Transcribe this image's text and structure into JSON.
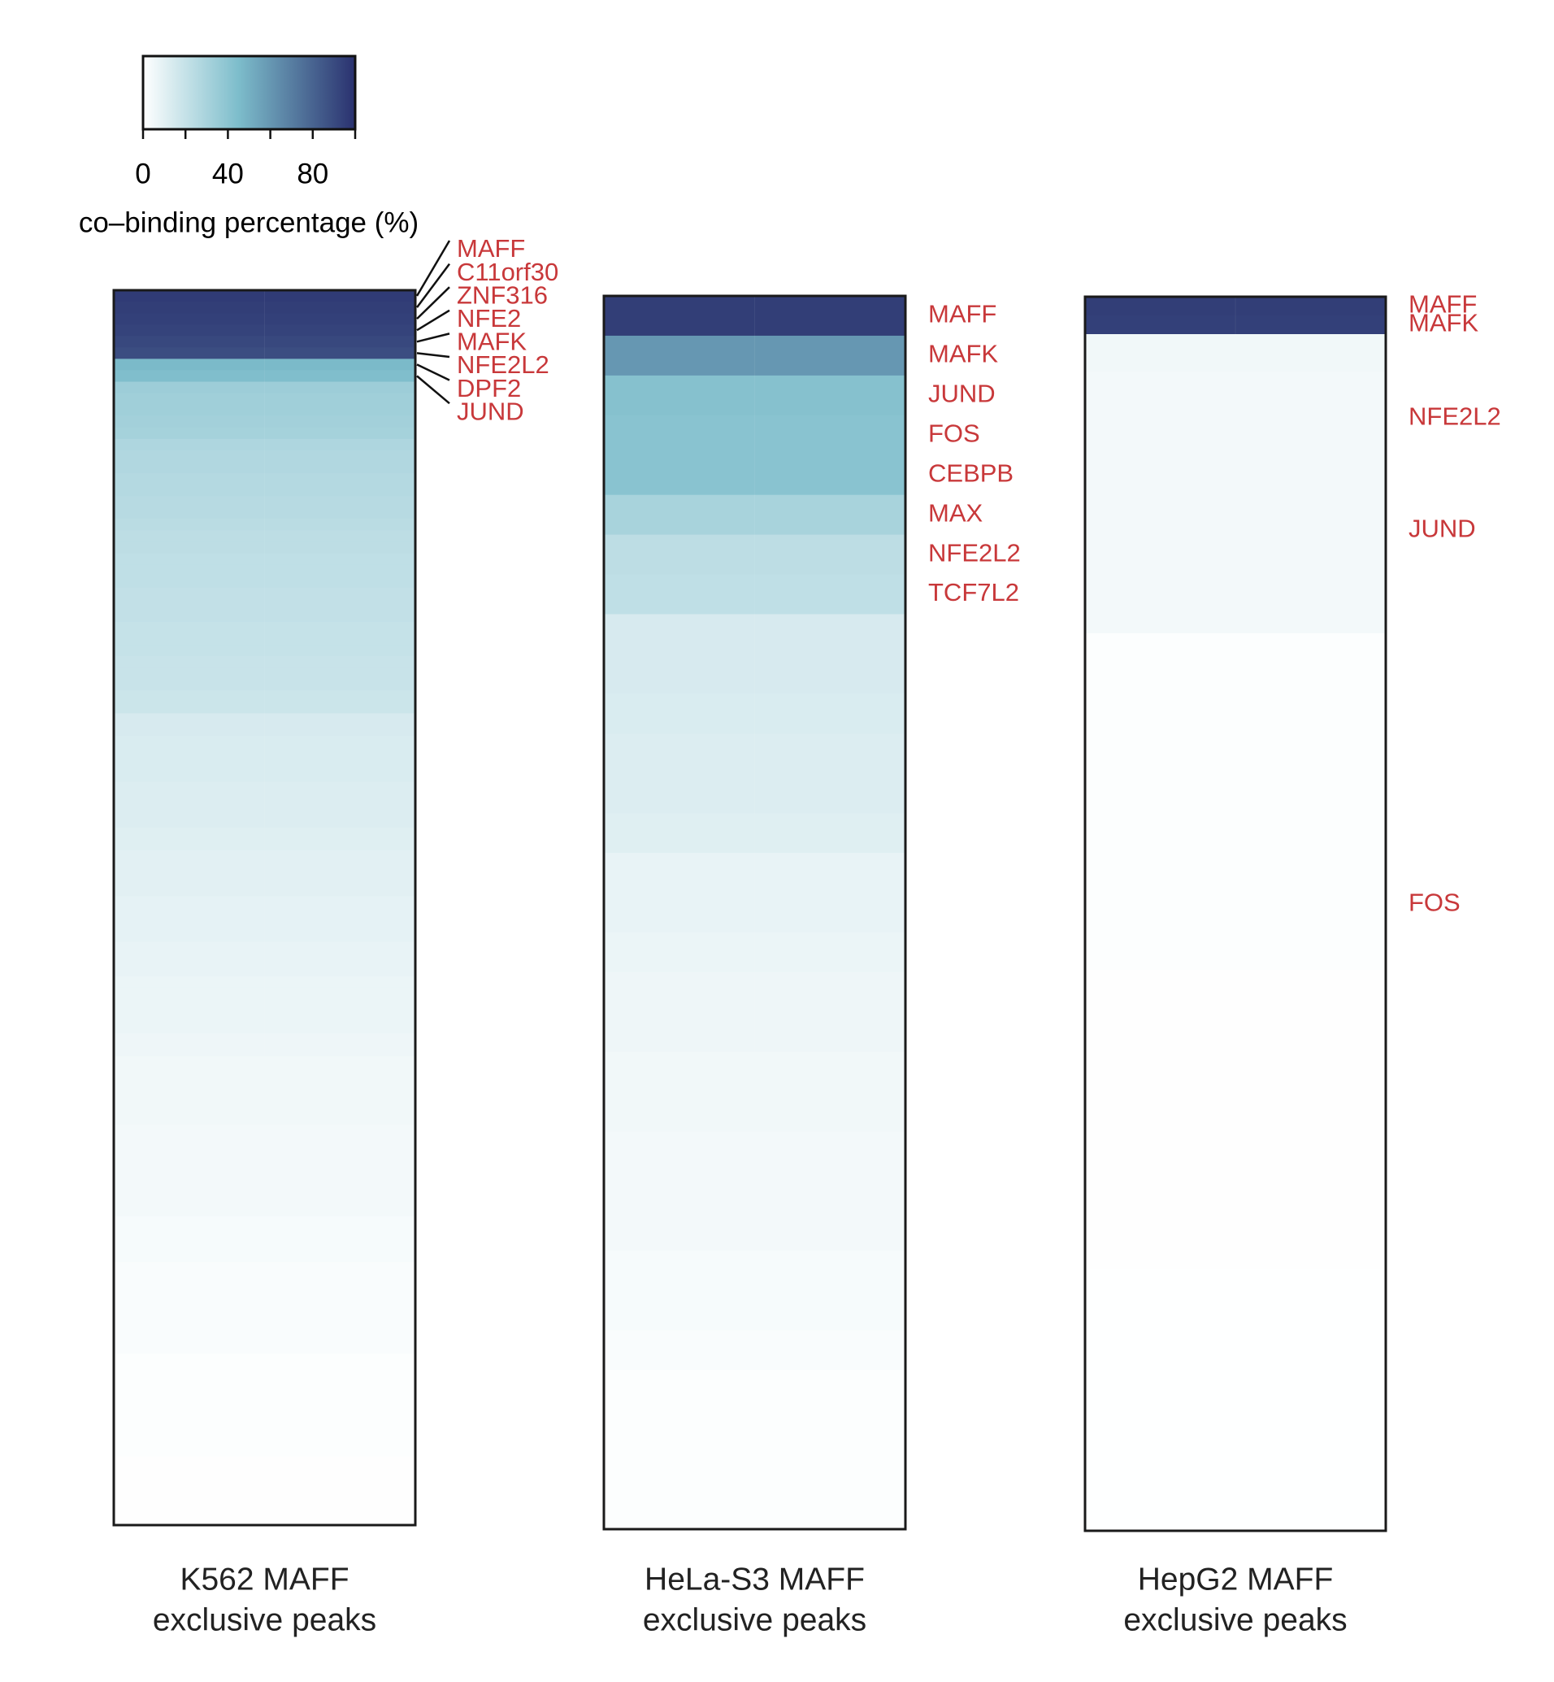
{
  "chart_data": {
    "type": "heatmap",
    "colorbar": {
      "label": "co–binding percentage (%)",
      "lim": [
        0,
        100
      ],
      "ticks": [
        0,
        40,
        80
      ],
      "minor_ticks": [
        20,
        60,
        100
      ]
    },
    "colorscale": [
      {
        "value": 0,
        "color": "#ffffff"
      },
      {
        "value": 45,
        "color": "#7dbdcb"
      },
      {
        "value": 100,
        "color": "#2a316f"
      }
    ],
    "label_color": "#c8383a",
    "panels": [
      {
        "title": [
          "K562 MAFF",
          "exclusive peaks"
        ],
        "leader_lines": true,
        "categories": [
          "MAFF",
          "C11orf30",
          "ZNF316",
          "NFE2",
          "MAFK",
          "NFE2L2",
          "DPF2",
          "JUND",
          null,
          null,
          null,
          null,
          null,
          null,
          null,
          null,
          null,
          null,
          null,
          null,
          null,
          null,
          null,
          null,
          null,
          null,
          null,
          null,
          null,
          null,
          null,
          null,
          null,
          null,
          null,
          null,
          null,
          null,
          null,
          null,
          null,
          null,
          null,
          null,
          null,
          null,
          null,
          null,
          null,
          null,
          null,
          null,
          null,
          null,
          null,
          null,
          null,
          null,
          null,
          null,
          null,
          null,
          null,
          null,
          null,
          null,
          null,
          null,
          null,
          null,
          null,
          null,
          null,
          null,
          null,
          null,
          null,
          null,
          null,
          null,
          null,
          null,
          null,
          null,
          null,
          null,
          null,
          null,
          null,
          null,
          null,
          null,
          null,
          null,
          null,
          null,
          null,
          null,
          null,
          null,
          null,
          null,
          null,
          null,
          null,
          null,
          null,
          null
        ],
        "values": [
          96,
          95,
          94,
          93,
          91,
          89,
          46,
          44,
          34,
          33,
          33,
          32,
          31,
          28,
          27,
          27,
          26,
          26,
          25,
          25,
          24,
          23,
          23,
          22,
          22,
          22,
          21,
          21,
          21,
          20,
          20,
          20,
          19,
          19,
          19,
          18,
          18,
          14,
          14,
          13,
          13,
          13,
          13,
          12,
          12,
          12,
          12,
          11,
          11,
          10,
          10,
          10,
          10,
          9,
          9,
          9,
          9,
          8,
          8,
          8,
          7,
          7,
          7,
          7,
          7,
          6,
          6,
          5,
          5,
          5,
          5,
          5,
          5,
          4,
          4,
          4,
          4,
          4,
          4,
          4,
          4,
          3,
          3,
          3,
          3,
          2,
          2,
          2,
          2,
          2,
          2,
          2,
          2,
          1,
          1,
          1,
          1,
          1,
          1,
          1,
          1,
          1,
          0.5,
          0.5,
          0.5,
          0.5,
          0.5,
          0.5
        ]
      },
      {
        "title": [
          "HeLa-S3 MAFF",
          "exclusive peaks"
        ],
        "leader_lines": false,
        "categories": [
          "MAFF",
          "MAFK",
          "JUND",
          "FOS",
          "CEBPB",
          "MAX",
          "NFE2L2",
          "TCF7L2",
          null,
          null,
          null,
          null,
          null,
          null,
          null,
          null,
          null,
          null,
          null,
          null,
          null,
          null,
          null,
          null,
          null,
          null,
          null,
          null,
          null,
          null,
          null
        ],
        "values": [
          95,
          60,
          42,
          41,
          41,
          30,
          23,
          22,
          14,
          14,
          13,
          12,
          12,
          11,
          8,
          8,
          7,
          6,
          6,
          5,
          5,
          4,
          4,
          4,
          3,
          3,
          2,
          1,
          1,
          1,
          1
        ]
      },
      {
        "title": [
          "HepG2 MAFF",
          "exclusive peaks"
        ],
        "leader_lines": false,
        "categories": [
          "MAFF",
          "MAFK",
          null,
          null,
          null,
          null,
          "NFE2L2",
          null,
          null,
          null,
          null,
          null,
          "JUND",
          null,
          null,
          null,
          null,
          null,
          null,
          null,
          null,
          null,
          null,
          null,
          null,
          null,
          null,
          null,
          null,
          null,
          null,
          null,
          "FOS",
          null,
          null,
          null,
          null,
          null,
          null,
          null,
          null,
          null,
          null,
          null,
          null,
          null,
          null,
          null,
          null,
          null,
          null,
          null,
          null,
          null,
          null,
          null,
          null,
          null,
          null,
          null,
          null,
          null,
          null,
          null,
          null,
          null
        ],
        "values": [
          95,
          94,
          5,
          5,
          4,
          4,
          4,
          4,
          4,
          4,
          4,
          4,
          4,
          4,
          4,
          4,
          4,
          4,
          1,
          1,
          1,
          1,
          1,
          1,
          1,
          1,
          1,
          1,
          1,
          1,
          1,
          1,
          1,
          1,
          1,
          1,
          0.5,
          0.5,
          0.5,
          0.5,
          0.5,
          0.5,
          0.5,
          0.5,
          0.5,
          0.5,
          0.5,
          0.5,
          0.5,
          0.5,
          0.5,
          0.5,
          0.3,
          0.3,
          0.3,
          0.3,
          0.3,
          0.3,
          0.3,
          0.3,
          0.3,
          0.3,
          0.3,
          0.3,
          0.3,
          0.3
        ]
      }
    ]
  }
}
